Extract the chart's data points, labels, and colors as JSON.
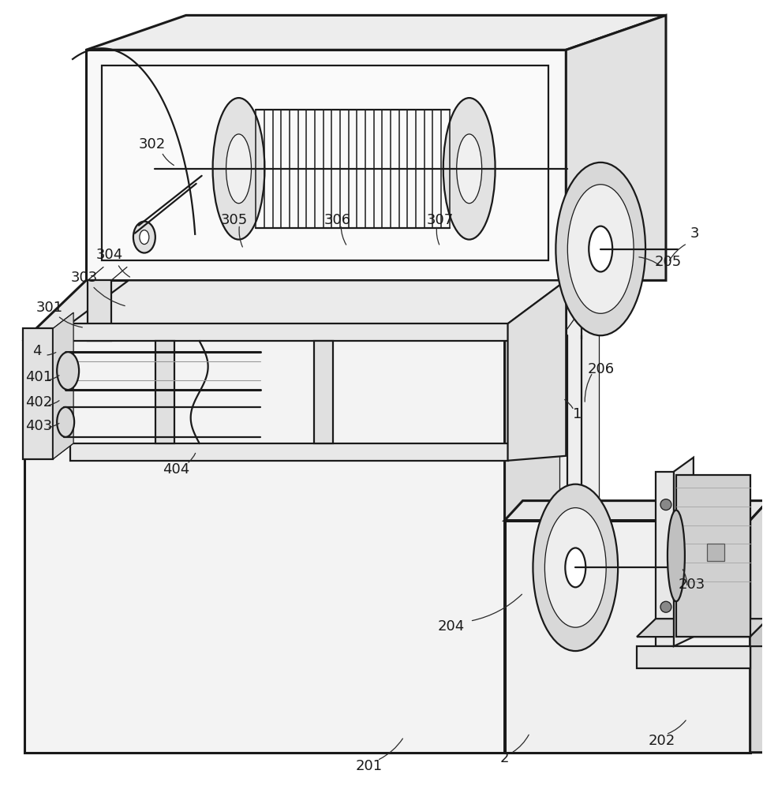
{
  "bg_color": "#ffffff",
  "line_color": "#1a1a1a",
  "figsize": [
    9.67,
    10.0
  ],
  "dpi": 100,
  "lw_thick": 2.2,
  "lw_med": 1.6,
  "lw_thin": 0.9
}
